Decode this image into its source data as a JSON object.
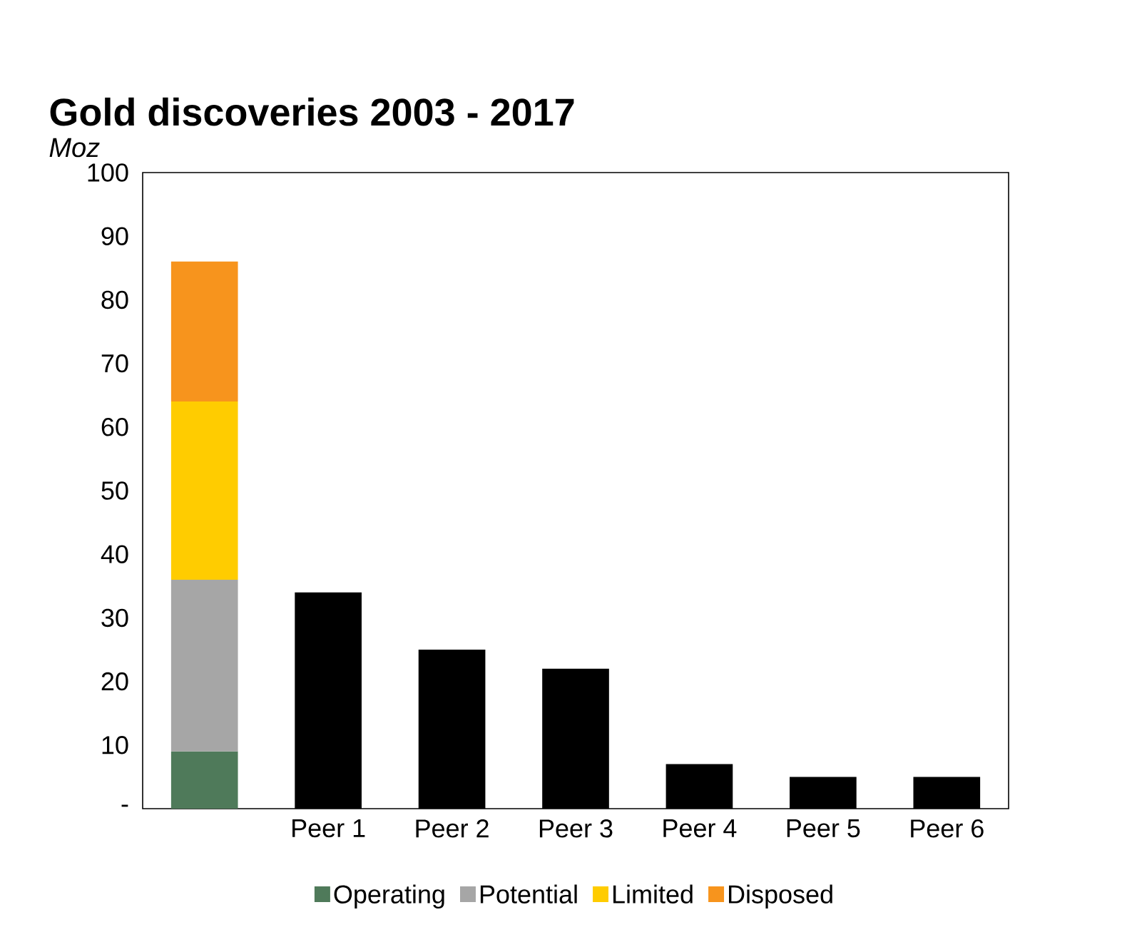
{
  "chart_data": {
    "type": "bar",
    "title": "Gold discoveries 2003 - 2017",
    "subtitle": "*Moz*",
    "categories": [
      null,
      "Peer 1",
      "Peer 2",
      "Peer 3",
      "Peer 4",
      "Peer 5",
      "Peer 6"
    ],
    "stacked": true,
    "series": [
      {
        "name": "Operating",
        "color": "#4f7a5a",
        "values": [
          9,
          null,
          null,
          null,
          null,
          null,
          null
        ]
      },
      {
        "name": "Potential",
        "color": "#a6a6a6",
        "values": [
          27,
          null,
          null,
          null,
          null,
          null,
          null
        ]
      },
      {
        "name": "Limited",
        "color": "#ffcc00",
        "values": [
          28,
          null,
          null,
          null,
          null,
          null,
          null
        ]
      },
      {
        "name": "Disposed",
        "color": "#f7941d",
        "values": [
          22,
          null,
          null,
          null,
          null,
          null,
          null
        ]
      },
      {
        "color": "#000000",
        "values": [
          null,
          34,
          25,
          22,
          7,
          5,
          5
        ]
      }
    ],
    "ylim": [
      0,
      100
    ],
    "yticks": [
      {
        "value": 0,
        "label": "-"
      },
      10,
      20,
      30,
      40,
      50,
      60,
      70,
      80,
      90,
      100
    ],
    "legend": "bottom"
  }
}
